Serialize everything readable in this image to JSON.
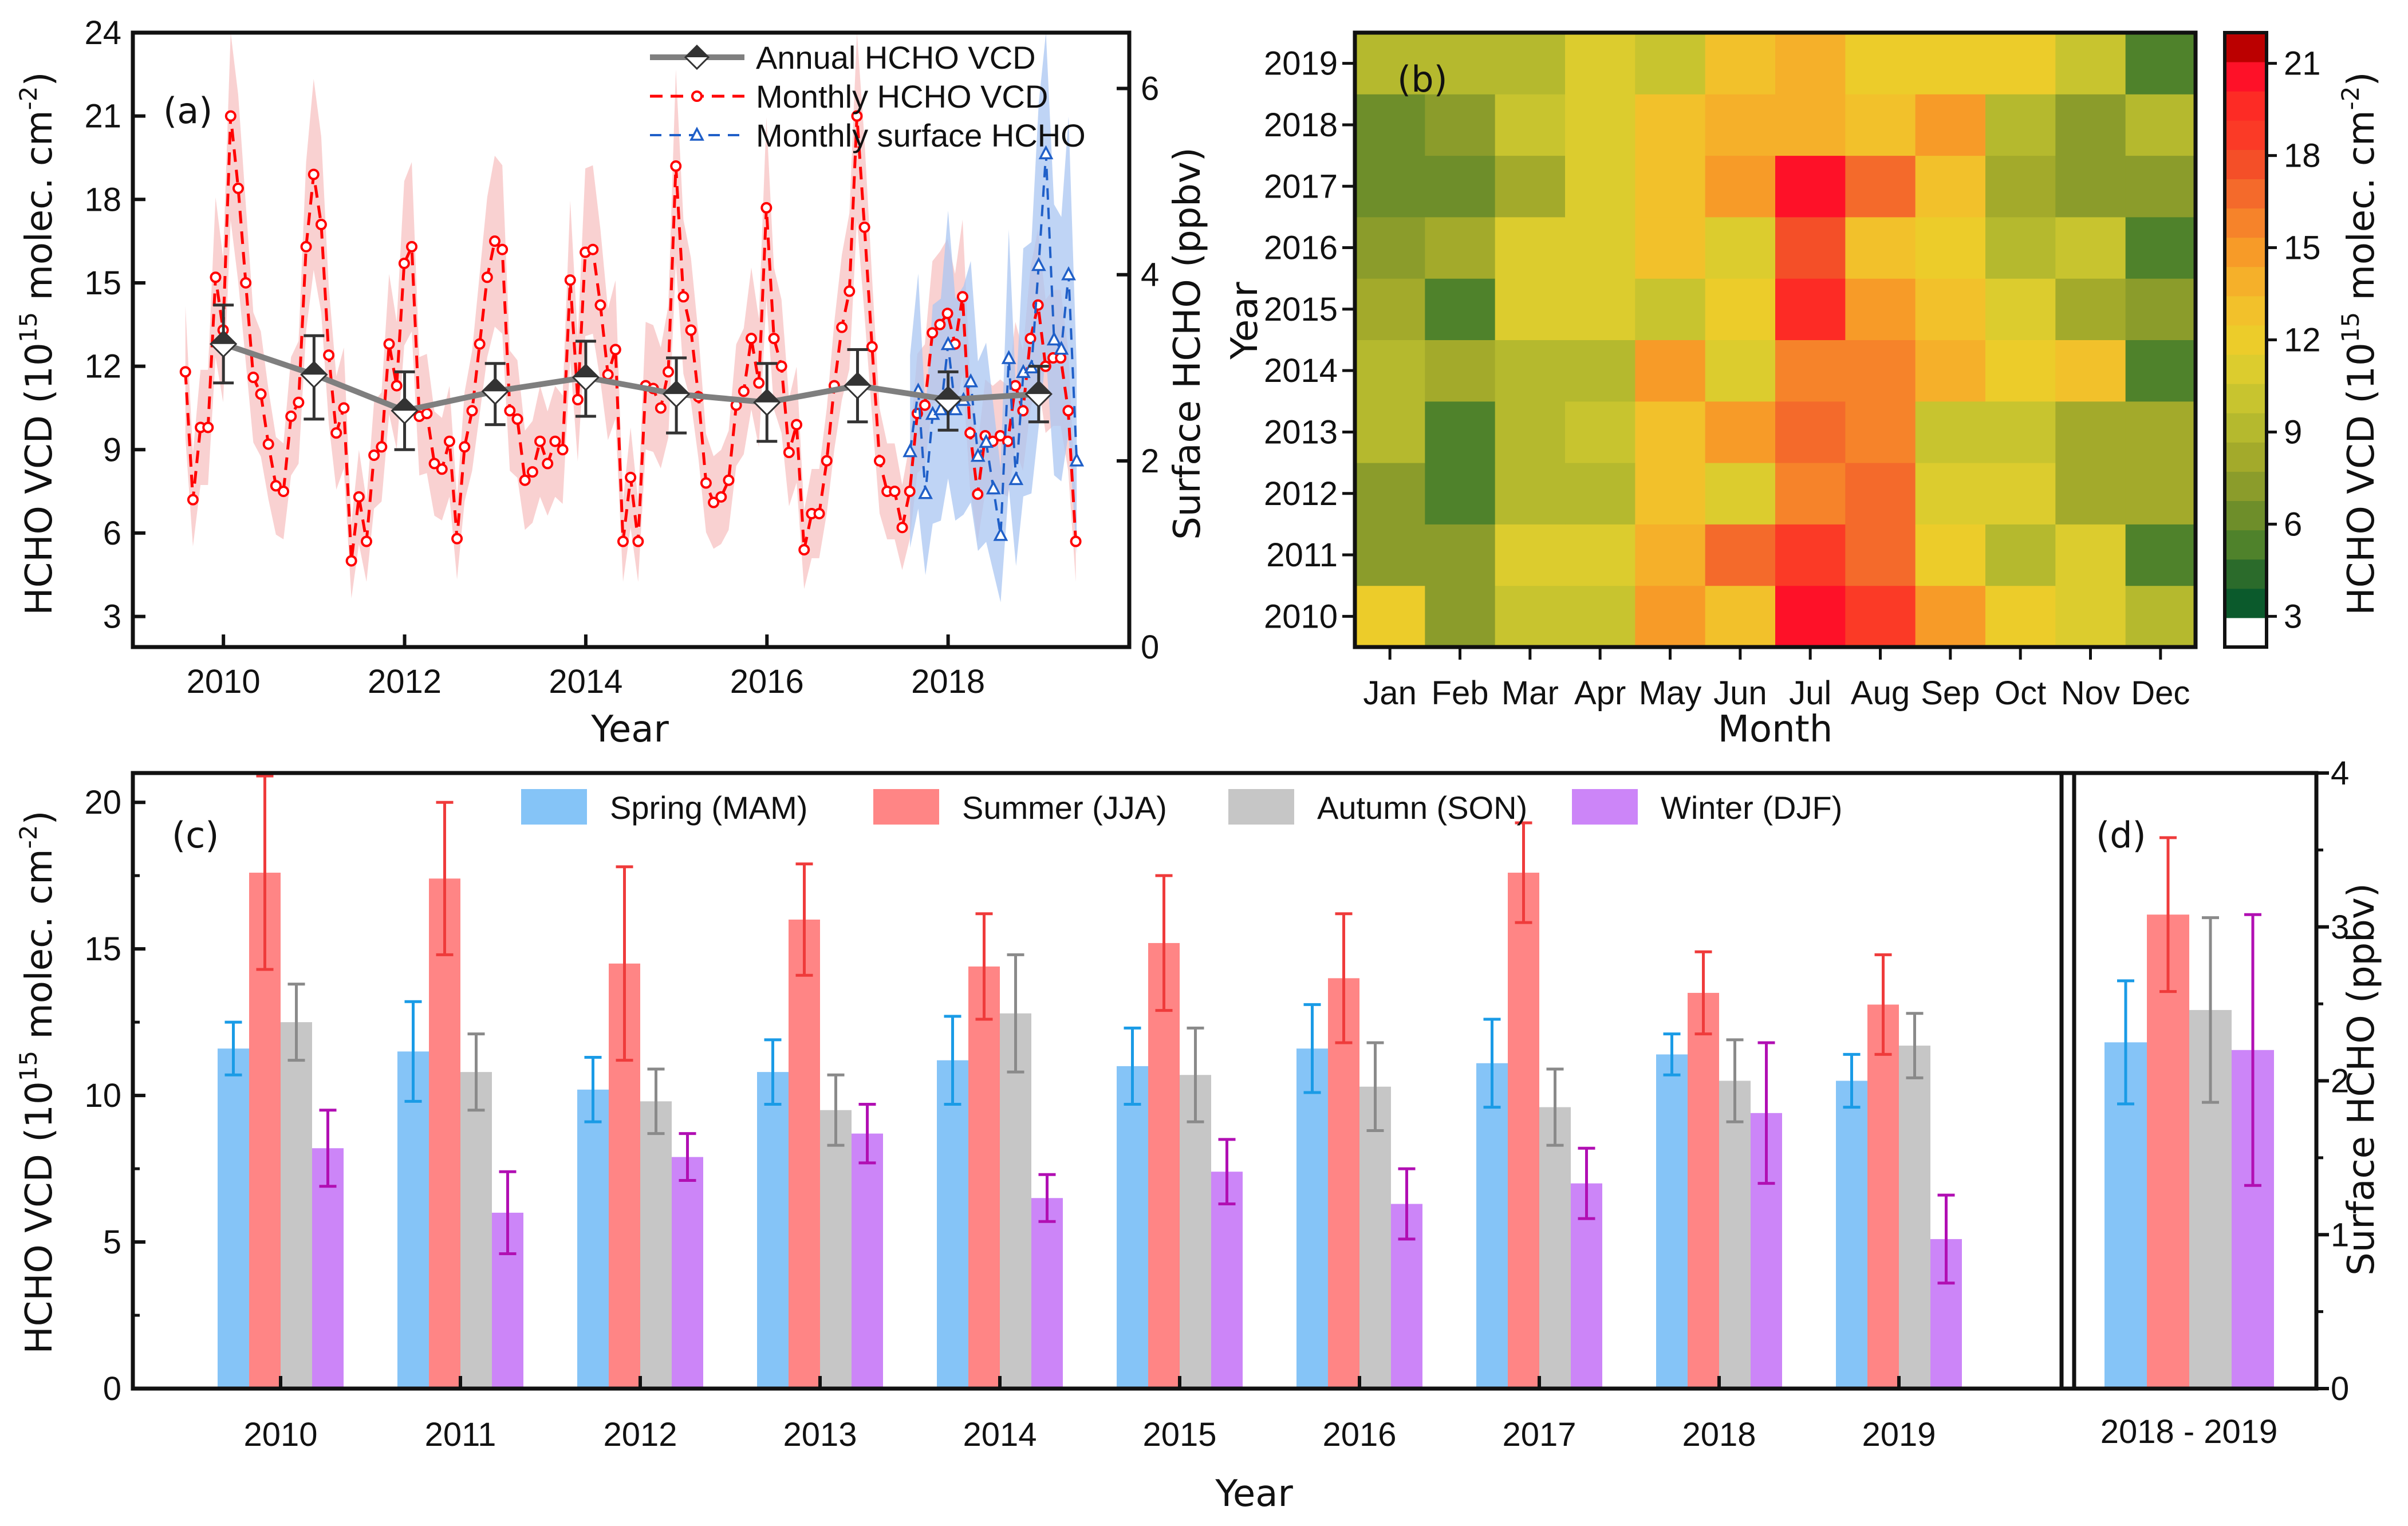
{
  "chart_data": [
    {
      "id": "a",
      "type": "line",
      "panel_label": "(a)",
      "xlabel": "Year",
      "ylabel": "HCHO VCD (10^15 molec. cm^-2)",
      "ylabel_parts": {
        "main": "HCHO VCD (10",
        "sup1": "15",
        "mid": " molec. cm",
        "sup2": "-2",
        "end": ")"
      },
      "y2label": "Surface HCHO (ppbv)",
      "xlim": [
        2009,
        2020
      ],
      "ylim": [
        1.9,
        24
      ],
      "y2lim": [
        0,
        6.6
      ],
      "xticks": [
        2010,
        2012,
        2014,
        2016,
        2018
      ],
      "yticks": [
        3,
        6,
        9,
        12,
        15,
        18,
        21,
        24
      ],
      "y2ticks": [
        0,
        2,
        4,
        6
      ],
      "legend_position": "top-right",
      "legend": [
        "Annual HCHO VCD",
        "Monthly HCHO VCD",
        "Monthly surface HCHO"
      ],
      "colors": {
        "annual": "#7f7f7f",
        "annual_marker": "#333333",
        "monthly": "#ff0000",
        "monthly_band": "#f8c9c9",
        "surface": "#1f5fc8",
        "surface_band": "#a9c6f2"
      },
      "series": [
        {
          "name": "Annual HCHO VCD",
          "x": [
            2010,
            2011,
            2012,
            2013,
            2014,
            2015,
            2016,
            2017,
            2018,
            2019
          ],
          "values": [
            12.8,
            11.7,
            10.4,
            11.1,
            11.6,
            11.0,
            10.7,
            11.3,
            10.8,
            11.0
          ],
          "err_low": [
            11.4,
            10.1,
            9.0,
            9.9,
            10.2,
            9.6,
            9.3,
            10.0,
            9.7,
            10.0
          ],
          "err_high": [
            14.2,
            13.1,
            11.8,
            12.1,
            12.9,
            12.3,
            12.1,
            12.6,
            11.8,
            12.0
          ]
        },
        {
          "name": "Monthly HCHO VCD",
          "x_start": 2009.58,
          "x_step": 0.0833,
          "values": [
            11.8,
            7.2,
            9.8,
            9.8,
            15.2,
            13.3,
            21.0,
            18.4,
            15.0,
            11.6,
            11.0,
            9.2,
            7.7,
            7.5,
            10.2,
            10.7,
            16.3,
            18.9,
            17.1,
            12.4,
            9.6,
            10.5,
            5.0,
            7.3,
            5.7,
            8.8,
            9.1,
            12.8,
            11.3,
            15.7,
            16.3,
            10.2,
            10.3,
            8.5,
            8.3,
            9.3,
            5.8,
            9.1,
            10.4,
            12.8,
            15.2,
            16.5,
            16.2,
            10.4,
            10.1,
            7.9,
            8.2,
            9.3,
            8.5,
            9.3,
            9.0,
            15.1,
            10.8,
            16.1,
            16.2,
            14.2,
            11.7,
            12.6,
            5.7,
            8.0,
            5.7,
            11.3,
            11.2,
            10.5,
            11.8,
            19.2,
            14.5,
            13.3,
            10.9,
            7.8,
            7.1,
            7.3,
            7.9,
            10.6,
            11.1,
            13.0,
            11.4,
            17.7,
            13.0,
            12.0,
            8.9,
            9.9,
            5.4,
            6.7,
            6.7,
            8.6,
            11.3,
            13.4,
            14.7,
            21.0,
            17.0,
            12.7,
            8.6,
            7.5,
            7.5,
            6.2,
            7.5,
            10.3,
            10.6,
            13.2,
            13.5,
            13.9,
            12.8,
            14.5,
            9.6,
            7.4,
            9.5,
            9.3,
            9.5,
            9.3,
            11.3,
            10.4,
            13.0,
            14.2,
            12.0,
            12.3,
            12.3,
            10.4,
            5.7
          ]
        },
        {
          "name": "Monthly surface HCHO",
          "x": [
            2017.58,
            2017.67,
            2017.75,
            2017.83,
            2017.92,
            2018.0,
            2018.08,
            2018.17,
            2018.25,
            2018.33,
            2018.42,
            2018.5,
            2018.58,
            2018.67,
            2018.75,
            2018.83,
            2018.92,
            2019.0,
            2019.08,
            2019.17,
            2019.25,
            2019.33,
            2019.42
          ],
          "values": [
            2.1,
            2.75,
            1.65,
            2.5,
            2.55,
            3.25,
            2.55,
            2.65,
            2.85,
            2.05,
            2.2,
            1.7,
            1.2,
            3.1,
            1.8,
            2.95,
            3.0,
            4.1,
            5.3,
            3.3,
            3.2,
            4.0,
            2.0
          ]
        }
      ]
    },
    {
      "id": "b",
      "type": "heatmap",
      "panel_label": "(b)",
      "xlabel": "Month",
      "ylabel": "Year",
      "colorbar_label": "HCHO VCD (10^15 molec. cm^-2)",
      "colorbar_label_parts": {
        "main": "HCHO VCD (10",
        "sup1": "15",
        "mid": " molec. cm",
        "sup2": "-2",
        "end": ")"
      },
      "colorbar_range": [
        2,
        22
      ],
      "colorbar_ticks": [
        3,
        6,
        9,
        12,
        15,
        18,
        21
      ],
      "colorbar_colors": [
        "#ffffff",
        "#0b5a2c",
        "#2b6b2b",
        "#4f822b",
        "#6e8e2a",
        "#8b9c2b",
        "#a3aa2b",
        "#b5b92e",
        "#c8c42f",
        "#dccc2e",
        "#eccc2a",
        "#f2c12b",
        "#f5b02a",
        "#f79b28",
        "#f6832a",
        "#f46a2b",
        "#f44f28",
        "#fb3a26",
        "#fd2b25",
        "#fe1128",
        "#bb0000"
      ],
      "xticklabels": [
        "Jan",
        "Feb",
        "Mar",
        "Apr",
        "May",
        "Jun",
        "Jul",
        "Aug",
        "Sep",
        "Oct",
        "Nov",
        "Dec"
      ],
      "yticklabels": [
        "2010",
        "2011",
        "2012",
        "2013",
        "2014",
        "2015",
        "2016",
        "2017",
        "2018",
        "2019"
      ],
      "values": [
        [
          11.8,
          7.6,
          9.8,
          9.8,
          15.3,
          13.3,
          21.0,
          18.4,
          15.0,
          11.6,
          11.0,
          9.2
        ],
        [
          7.7,
          7.5,
          11.2,
          11.2,
          13.6,
          16.3,
          18.9,
          17.1,
          12.4,
          9.6,
          11.3,
          5.0
        ],
        [
          7.3,
          5.7,
          8.8,
          9.1,
          12.8,
          11.3,
          15.7,
          16.3,
          11.2,
          11.2,
          8.5,
          8.3
        ],
        [
          9.3,
          5.8,
          9.1,
          10.4,
          12.6,
          15.2,
          16.5,
          16.2,
          10.4,
          10.1,
          7.9,
          8.2
        ],
        [
          9.3,
          8.5,
          9.3,
          9.0,
          15.1,
          10.8,
          16.1,
          16.2,
          14.2,
          11.7,
          12.6,
          5.7
        ],
        [
          8.0,
          5.7,
          11.3,
          11.2,
          10.5,
          11.8,
          19.2,
          14.5,
          13.3,
          10.9,
          7.8,
          7.1
        ],
        [
          7.3,
          7.9,
          10.6,
          11.1,
          13.0,
          11.4,
          17.7,
          13.0,
          12.0,
          8.9,
          9.9,
          5.4
        ],
        [
          6.7,
          6.7,
          8.6,
          11.3,
          13.4,
          14.7,
          21.0,
          17.0,
          12.7,
          8.6,
          7.5,
          7.5
        ],
        [
          6.2,
          7.5,
          10.3,
          10.6,
          13.2,
          13.5,
          13.9,
          12.8,
          14.5,
          9.6,
          7.4,
          9.5
        ],
        [
          9.3,
          9.5,
          9.3,
          11.3,
          10.4,
          13.0,
          14.2,
          12.0,
          12.3,
          12.3,
          10.4,
          5.7
        ]
      ]
    },
    {
      "id": "c",
      "type": "bar",
      "panel_label": "(c)",
      "xlabel": "Year",
      "ylabel": "HCHO VCD (10^15 molec. cm^-2)",
      "ylabel_parts": {
        "main": "HCHO VCD (10",
        "sup1": "15",
        "mid": " molec. cm",
        "sup2": "-2",
        "end": ")"
      },
      "ylim": [
        0,
        21
      ],
      "yticks": [
        0,
        5,
        10,
        15,
        20
      ],
      "legend_position": "top",
      "categories": [
        "2010",
        "2011",
        "2012",
        "2013",
        "2014",
        "2015",
        "2016",
        "2017",
        "2018",
        "2019"
      ],
      "series": [
        {
          "name": "Spring (MAM)",
          "color": "#85c4f7",
          "err_color": "#1a9be6",
          "values": [
            11.6,
            11.5,
            10.2,
            10.8,
            11.2,
            11.0,
            11.6,
            11.1,
            11.4,
            10.5
          ],
          "err": [
            0.9,
            1.7,
            1.1,
            1.1,
            1.5,
            1.3,
            1.5,
            1.5,
            0.7,
            0.9
          ]
        },
        {
          "name": "Summer (JJA)",
          "color": "#ff8585",
          "err_color": "#ef3b3b",
          "values": [
            17.6,
            17.4,
            14.5,
            16.0,
            14.4,
            15.2,
            14.0,
            17.6,
            13.5,
            13.1
          ],
          "err": [
            3.3,
            2.6,
            3.3,
            1.9,
            1.8,
            2.3,
            2.2,
            1.7,
            1.4,
            1.7
          ]
        },
        {
          "name": "Autumn (SON)",
          "color": "#c6c6c6",
          "err_color": "#8a8a8a",
          "values": [
            12.5,
            10.8,
            9.8,
            9.5,
            12.8,
            10.7,
            10.3,
            9.6,
            10.5,
            11.7
          ],
          "err": [
            1.3,
            1.3,
            1.1,
            1.2,
            2.0,
            1.6,
            1.5,
            1.3,
            1.4,
            1.1
          ]
        },
        {
          "name": "Winter (DJF)",
          "color": "#cc85f8",
          "err_color": "#b10fb3",
          "values": [
            8.2,
            6.0,
            7.9,
            8.7,
            6.5,
            7.4,
            6.3,
            7.0,
            9.4,
            5.1
          ],
          "err": [
            1.3,
            1.4,
            0.8,
            1.0,
            0.8,
            1.1,
            1.2,
            1.2,
            2.4,
            1.5
          ]
        }
      ]
    },
    {
      "id": "d",
      "type": "bar",
      "panel_label": "(d)",
      "xlabel": "",
      "ylabel": "Surface HCHO (ppbv)",
      "ylim": [
        0,
        4
      ],
      "yticks": [
        0,
        1,
        2,
        3,
        4
      ],
      "categories": [
        "2018 - 2019"
      ],
      "series": [
        {
          "name": "Spring (MAM)",
          "color": "#85c4f7",
          "err_color": "#1a9be6",
          "values": [
            2.25
          ],
          "err": [
            0.4
          ]
        },
        {
          "name": "Summer (JJA)",
          "color": "#ff8585",
          "err_color": "#ef3b3b",
          "values": [
            3.08
          ],
          "err": [
            0.5
          ]
        },
        {
          "name": "Autumn (SON)",
          "color": "#c6c6c6",
          "err_color": "#8a8a8a",
          "values": [
            2.46
          ],
          "err": [
            0.6
          ]
        },
        {
          "name": "Winter (DJF)",
          "color": "#cc85f8",
          "err_color": "#b10fb3",
          "values": [
            2.2
          ],
          "err": [
            0.88
          ]
        }
      ]
    }
  ]
}
